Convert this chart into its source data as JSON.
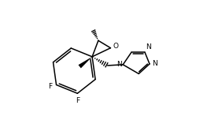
{
  "bg": "#ffffff",
  "lc": "#000000",
  "lw": 1.1,
  "fig_w": 2.82,
  "fig_h": 1.57,
  "dpi": 100,
  "fs": 6.5,
  "xlim": [
    -1,
    11
  ],
  "ylim": [
    -0.5,
    6.5
  ]
}
